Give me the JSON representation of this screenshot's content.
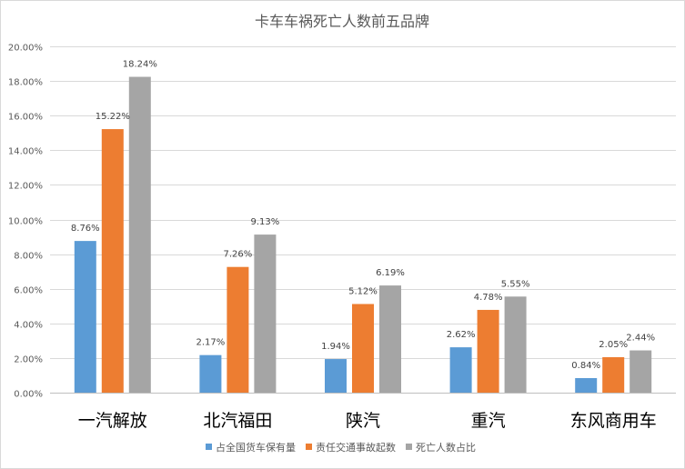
{
  "chart_data": {
    "type": "bar",
    "title": "卡车车祸死亡人数前五品牌",
    "categories": [
      "一汽解放",
      "北汽福田",
      "陕汽",
      "重汽",
      "东风商用车"
    ],
    "series": [
      {
        "name": "占全国货车保有量",
        "color": "#5b9bd5",
        "values": [
          8.76,
          2.17,
          1.94,
          2.62,
          0.84
        ],
        "labels": [
          "8.76%",
          "2.17%",
          "1.94%",
          "2.62%",
          "0.84%"
        ]
      },
      {
        "name": "责任交通事故起数",
        "color": "#ed7d31",
        "values": [
          15.22,
          7.26,
          5.12,
          4.78,
          2.05
        ],
        "labels": [
          "15.22%",
          "7.26%",
          "5.12%",
          "4.78%",
          "2.05%"
        ]
      },
      {
        "name": "死亡人数占比",
        "color": "#a5a5a5",
        "values": [
          18.24,
          9.13,
          6.19,
          5.55,
          2.44
        ],
        "labels": [
          "18.24%",
          "9.13%",
          "6.19%",
          "5.55%",
          "2.44%"
        ]
      }
    ],
    "y_ticks": [
      "0.00%",
      "2.00%",
      "4.00%",
      "6.00%",
      "8.00%",
      "10.00%",
      "12.00%",
      "14.00%",
      "16.00%",
      "18.00%",
      "20.00%"
    ],
    "ylim": [
      0,
      20
    ],
    "grid": true,
    "legend_position": "bottom",
    "xlabel": "",
    "ylabel": ""
  }
}
